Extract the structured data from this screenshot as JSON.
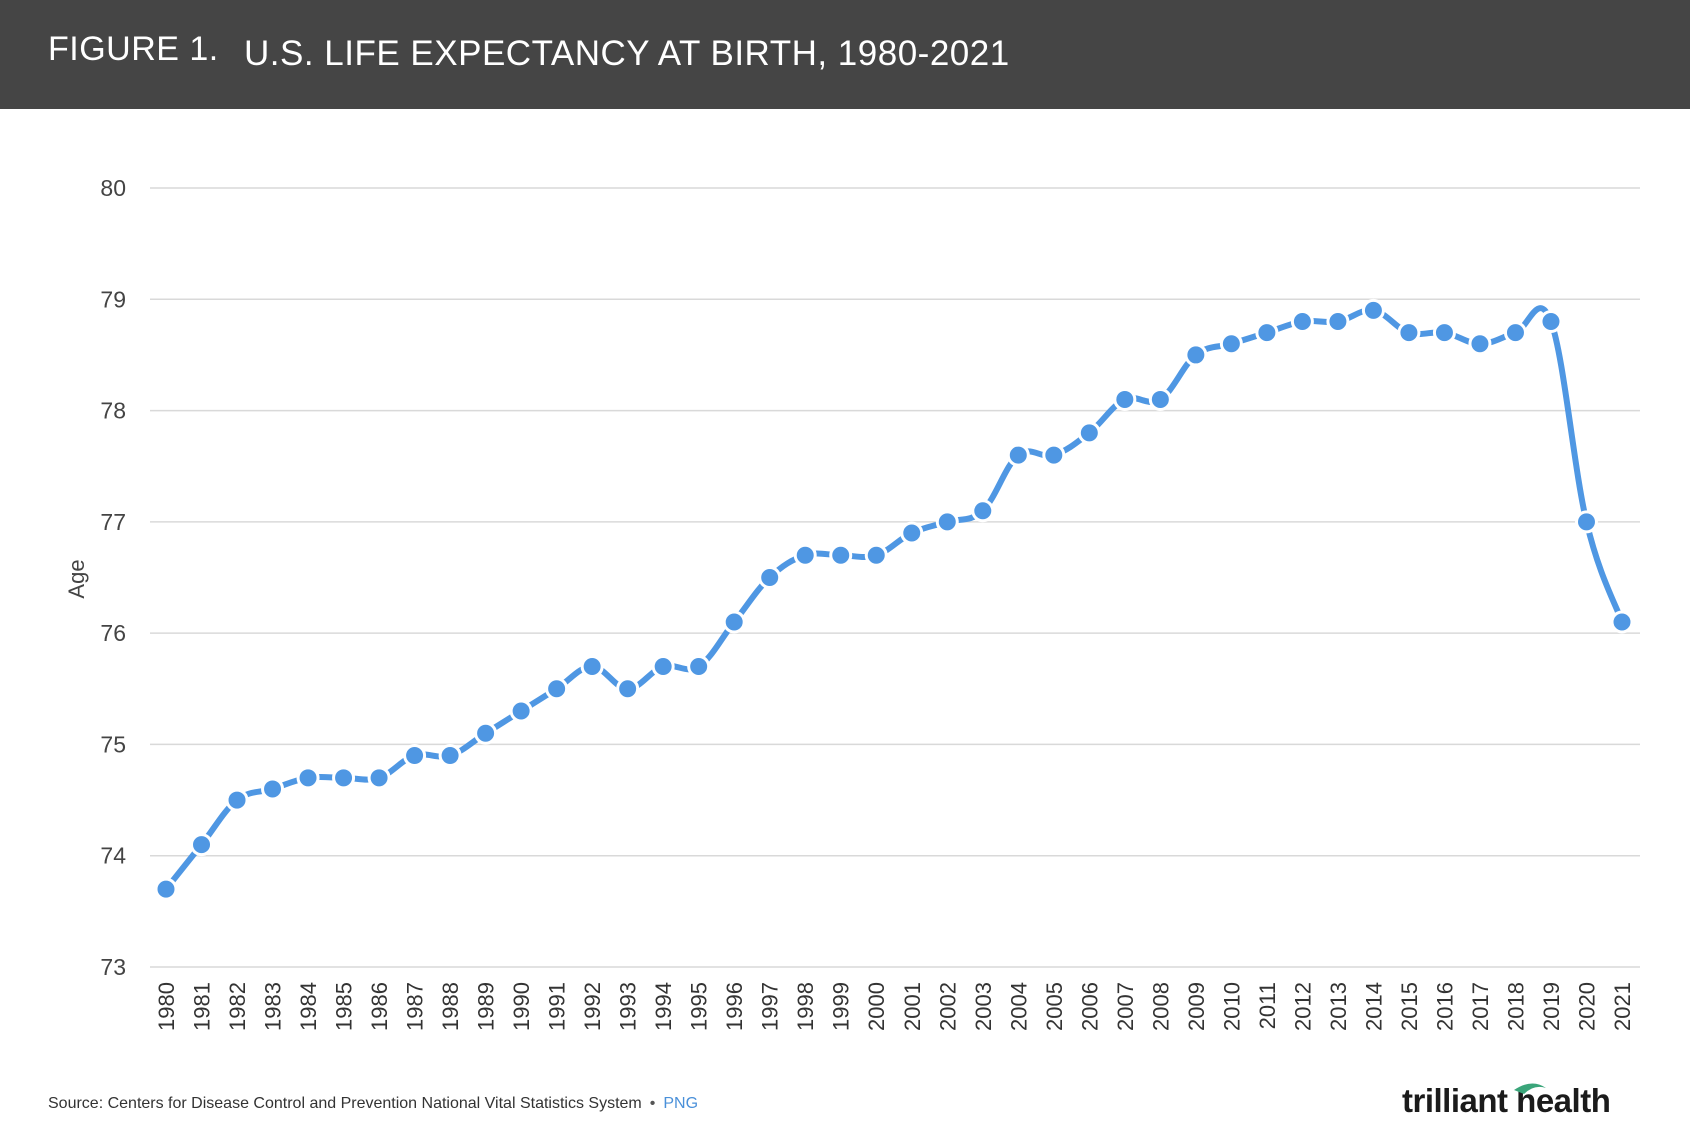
{
  "header": {
    "figure_label": "FIGURE 1.",
    "title": "U.S. LIFE EXPECTANCY AT BIRTH, 1980-2021"
  },
  "footer": {
    "source": "Source: Centers for Disease Control and Prevention National Vital Statistics System",
    "separator": "•",
    "format_link": "PNG",
    "logo_text": "trilliant health"
  },
  "colors": {
    "header_bg": "#454545",
    "series": "#4f97e3",
    "grid": "#d9d9d9",
    "link": "#4a90d9"
  },
  "chart_data": {
    "type": "line",
    "title": "U.S. LIFE EXPECTANCY AT BIRTH, 1980-2021",
    "xlabel": "",
    "ylabel": "Age",
    "ylim": [
      73,
      80
    ],
    "yticks": [
      73,
      74,
      75,
      76,
      77,
      78,
      79,
      80
    ],
    "grid": true,
    "markers": true,
    "x": [
      "1980",
      "1981",
      "1982",
      "1983",
      "1984",
      "1985",
      "1986",
      "1987",
      "1988",
      "1989",
      "1990",
      "1991",
      "1992",
      "1993",
      "1994",
      "1995",
      "1996",
      "1997",
      "1998",
      "1999",
      "2000",
      "2001",
      "2002",
      "2003",
      "2004",
      "2005",
      "2006",
      "2007",
      "2008",
      "2009",
      "2010",
      "2011",
      "2012",
      "2013",
      "2014",
      "2015",
      "2016",
      "2017",
      "2018",
      "2019",
      "2020",
      "2021"
    ],
    "series": [
      {
        "values": [
          73.7,
          74.1,
          74.5,
          74.6,
          74.7,
          74.7,
          74.7,
          74.9,
          74.9,
          75.1,
          75.3,
          75.5,
          75.7,
          75.5,
          75.7,
          75.7,
          76.1,
          76.5,
          76.7,
          76.7,
          76.7,
          76.9,
          77.0,
          77.1,
          77.6,
          77.6,
          77.8,
          78.1,
          78.1,
          78.5,
          78.6,
          78.7,
          78.8,
          78.8,
          78.9,
          78.7,
          78.7,
          78.6,
          78.7,
          78.8,
          77.0,
          76.1
        ]
      }
    ]
  }
}
